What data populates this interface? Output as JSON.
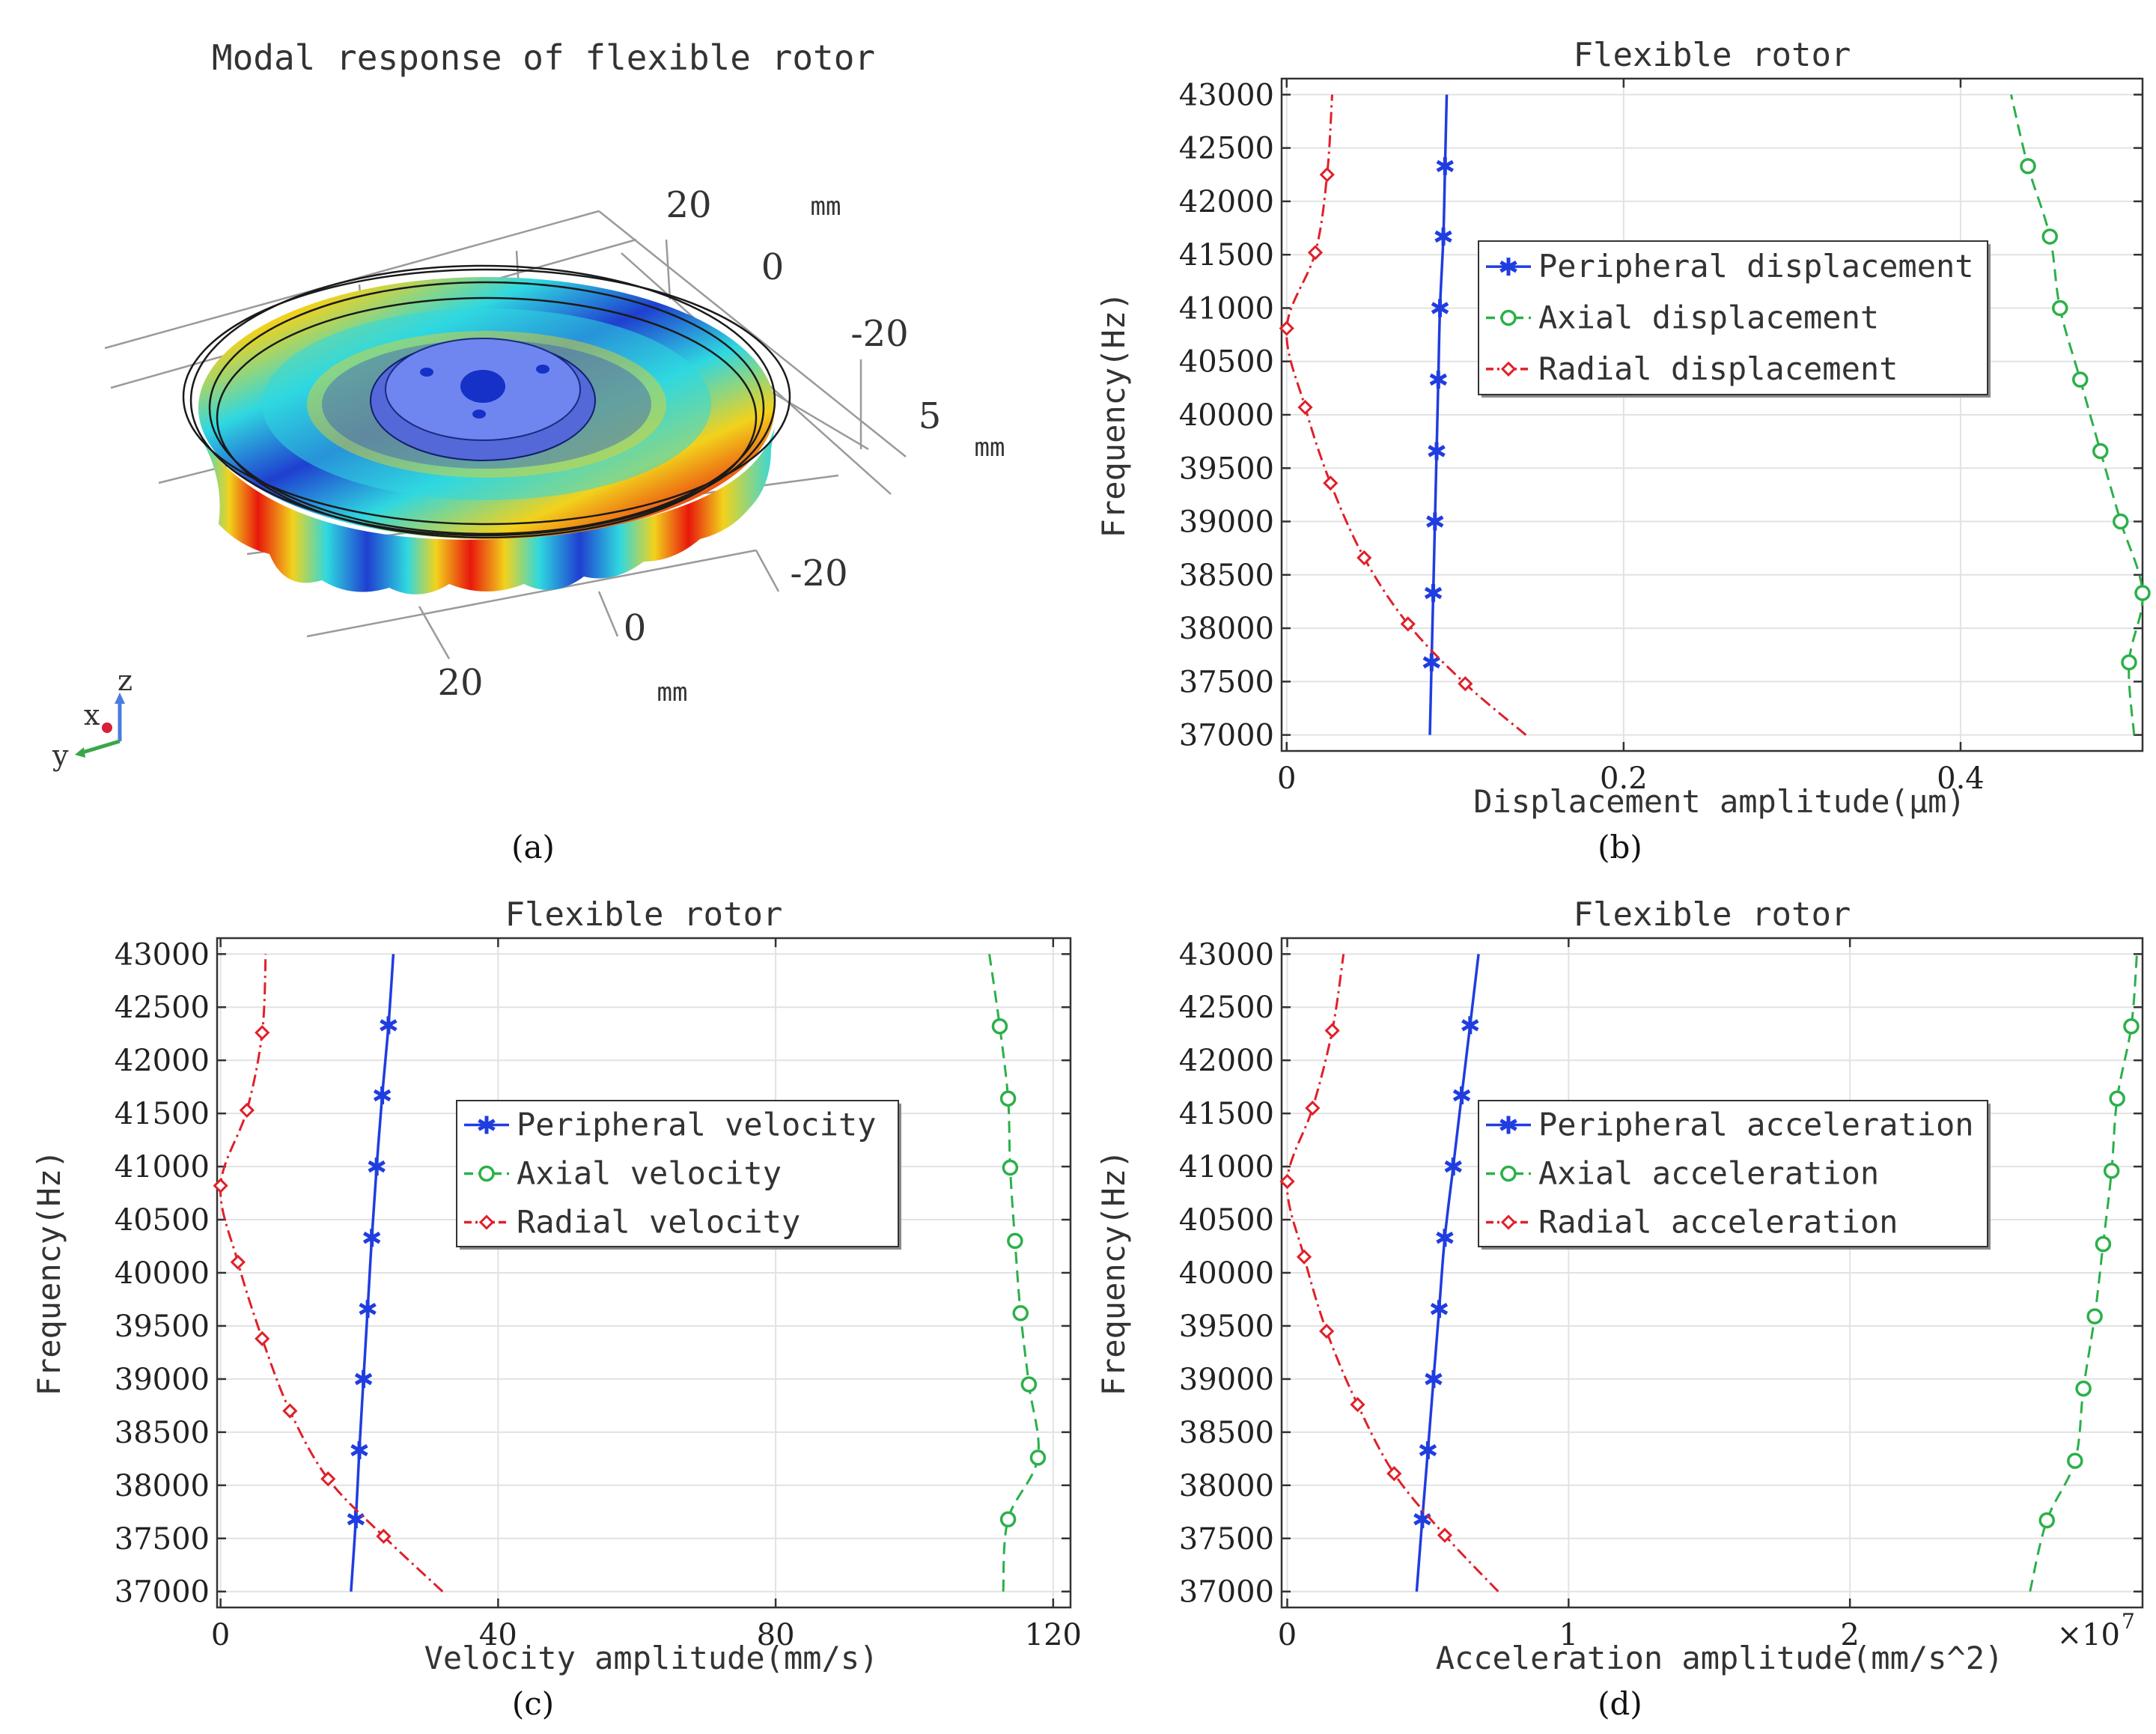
{
  "panels": {
    "a": {
      "title": "Modal response of flexible rotor",
      "caption": "(a)",
      "axis_ticks": {
        "top_y": [
          "20",
          "0",
          "-20"
        ],
        "top_unit": "mm",
        "z_tick": "5",
        "z_unit": "mm",
        "bottom_x": [
          "-20",
          "0",
          "20"
        ],
        "bottom_unit": "mm"
      },
      "triad": {
        "z": "z",
        "x": "x",
        "y": "y"
      },
      "colors": {
        "red": "#e8180c",
        "yellow": "#f2d21c",
        "cyan": "#2fd8e0",
        "blue": "#1f3fd0",
        "hub": "#6f86f0"
      }
    },
    "b": {
      "caption": "(b)"
    },
    "c": {
      "caption": "(c)"
    },
    "d": {
      "caption": "(d)"
    }
  },
  "chart_data": [
    {
      "id": "b",
      "type": "line",
      "title": "Flexible rotor",
      "xlabel": "Displacement amplitude(μm)",
      "ylabel": "Frequency(Hz)",
      "xlim": [
        -0.003,
        0.508
      ],
      "ylim": [
        36850,
        43150
      ],
      "xticks": [
        0,
        0.2,
        0.4
      ],
      "xtick_labels": [
        "0",
        "0.2",
        "0.4"
      ],
      "x_multiplier": "",
      "yticks": [
        37000,
        37500,
        38000,
        38500,
        39000,
        39500,
        40000,
        40500,
        41000,
        41500,
        42000,
        42500,
        43000
      ],
      "ytick_labels": [
        "37000",
        "37500",
        "38000",
        "38500",
        "39000",
        "39500",
        "40000",
        "40500",
        "41000",
        "41500",
        "42000",
        "42500",
        "43000"
      ],
      "legend": "center",
      "series": [
        {
          "name": "Peripheral displacement",
          "color": "#1f3de0",
          "marker": "asterisk",
          "dash": "",
          "curve": [
            [
              0.085,
              37000
            ],
            [
              0.086,
              37680
            ],
            [
              0.087,
              38330
            ],
            [
              0.088,
              39000
            ],
            [
              0.089,
              39660
            ],
            [
              0.09,
              40330
            ],
            [
              0.091,
              41000
            ],
            [
              0.093,
              41670
            ],
            [
              0.094,
              42330
            ],
            [
              0.095,
              43000
            ]
          ],
          "markers": [
            [
              0.086,
              37680
            ],
            [
              0.087,
              38330
            ],
            [
              0.088,
              39000
            ],
            [
              0.089,
              39660
            ],
            [
              0.09,
              40330
            ],
            [
              0.091,
              41000
            ],
            [
              0.093,
              41670
            ],
            [
              0.094,
              42330
            ]
          ]
        },
        {
          "name": "Axial displacement",
          "color": "#2bb04a",
          "marker": "circle",
          "dash": "16,9",
          "curve": [
            [
              0.503,
              37000
            ],
            [
              0.5,
              37680
            ],
            [
              0.508,
              38330
            ],
            [
              0.495,
              39000
            ],
            [
              0.483,
              39660
            ],
            [
              0.471,
              40330
            ],
            [
              0.459,
              41000
            ],
            [
              0.453,
              41670
            ],
            [
              0.44,
              42330
            ],
            [
              0.43,
              43000
            ]
          ],
          "markers": [
            [
              0.5,
              37680
            ],
            [
              0.508,
              38330
            ],
            [
              0.495,
              39000
            ],
            [
              0.483,
              39660
            ],
            [
              0.471,
              40330
            ],
            [
              0.459,
              41000
            ],
            [
              0.453,
              41670
            ],
            [
              0.44,
              42330
            ]
          ]
        },
        {
          "name": "Radial displacement",
          "color": "#e0202a",
          "marker": "diamond",
          "dash": "16,6,3,6",
          "curve": [
            [
              0.142,
              37000
            ],
            [
              0.106,
              37480
            ],
            [
              0.072,
              38040
            ],
            [
              0.046,
              38660
            ],
            [
              0.026,
              39360
            ],
            [
              0.011,
              40070
            ],
            [
              0,
              40810
            ],
            [
              0.017,
              41520
            ],
            [
              0.024,
              42250
            ],
            [
              0.027,
              43000
            ]
          ],
          "markers": [
            [
              0.106,
              37480
            ],
            [
              0.072,
              38040
            ],
            [
              0.046,
              38660
            ],
            [
              0.026,
              39360
            ],
            [
              0.011,
              40070
            ],
            [
              0,
              40810
            ],
            [
              0.017,
              41520
            ],
            [
              0.024,
              42250
            ]
          ]
        }
      ]
    },
    {
      "id": "c",
      "type": "line",
      "title": "Flexible rotor",
      "xlabel": "Velocity amplitude(mm/s)",
      "ylabel": "Frequency(Hz)",
      "xlim": [
        -0.5,
        122.5
      ],
      "ylim": [
        36850,
        43150
      ],
      "xticks": [
        0,
        40,
        80,
        120
      ],
      "xtick_labels": [
        "0",
        "40",
        "80",
        "120"
      ],
      "x_multiplier": "",
      "yticks": [
        37000,
        37500,
        38000,
        38500,
        39000,
        39500,
        40000,
        40500,
        41000,
        41500,
        42000,
        42500,
        43000
      ],
      "ytick_labels": [
        "37000",
        "37500",
        "38000",
        "38500",
        "39000",
        "39500",
        "40000",
        "40500",
        "41000",
        "41500",
        "42000",
        "42500",
        "43000"
      ],
      "legend": "center",
      "series": [
        {
          "name": "Peripheral velocity",
          "color": "#1f3de0",
          "marker": "asterisk",
          "dash": "",
          "curve": [
            [
              18.8,
              37000
            ],
            [
              19.5,
              37680
            ],
            [
              20,
              38330
            ],
            [
              20.6,
              39000
            ],
            [
              21.2,
              39660
            ],
            [
              21.8,
              40330
            ],
            [
              22.5,
              41000
            ],
            [
              23.3,
              41670
            ],
            [
              24.2,
              42330
            ],
            [
              24.9,
              43000
            ]
          ],
          "markers": [
            [
              19.5,
              37680
            ],
            [
              20,
              38330
            ],
            [
              20.6,
              39000
            ],
            [
              21.2,
              39660
            ],
            [
              21.8,
              40330
            ],
            [
              22.5,
              41000
            ],
            [
              23.3,
              41670
            ],
            [
              24.2,
              42330
            ]
          ]
        },
        {
          "name": "Axial velocity",
          "color": "#2bb04a",
          "marker": "circle",
          "dash": "16,9",
          "curve": [
            [
              112.8,
              37000
            ],
            [
              113.5,
              37680
            ],
            [
              117.8,
              38260
            ],
            [
              116.5,
              38950
            ],
            [
              115.3,
              39620
            ],
            [
              114.5,
              40300
            ],
            [
              113.8,
              40990
            ],
            [
              113.5,
              41640
            ],
            [
              112.3,
              42320
            ],
            [
              110.8,
              43000
            ]
          ],
          "markers": [
            [
              113.5,
              37680
            ],
            [
              117.8,
              38260
            ],
            [
              116.5,
              38950
            ],
            [
              115.3,
              39620
            ],
            [
              114.5,
              40300
            ],
            [
              113.8,
              40990
            ],
            [
              113.5,
              41640
            ],
            [
              112.3,
              42320
            ]
          ]
        },
        {
          "name": "Radial velocity",
          "color": "#e0202a",
          "marker": "diamond",
          "dash": "16,6,3,6",
          "curve": [
            [
              32,
              37000
            ],
            [
              23.5,
              37520
            ],
            [
              15.5,
              38060
            ],
            [
              10,
              38700
            ],
            [
              6,
              39380
            ],
            [
              2.5,
              40100
            ],
            [
              0,
              40820
            ],
            [
              3.8,
              41530
            ],
            [
              6,
              42260
            ],
            [
              6.5,
              43000
            ]
          ],
          "markers": [
            [
              23.5,
              37520
            ],
            [
              15.5,
              38060
            ],
            [
              10,
              38700
            ],
            [
              6,
              39380
            ],
            [
              2.5,
              40100
            ],
            [
              0,
              40820
            ],
            [
              3.8,
              41530
            ],
            [
              6,
              42260
            ]
          ]
        }
      ]
    },
    {
      "id": "d",
      "type": "line",
      "title": "Flexible rotor",
      "xlabel": "Acceleration amplitude(mm/s^2)",
      "ylabel": "Frequency(Hz)",
      "xlim": [
        -0.02,
        3.04
      ],
      "ylim": [
        36850,
        43150
      ],
      "xticks": [
        0,
        1,
        2
      ],
      "xtick_labels": [
        "0",
        "1",
        "2"
      ],
      "x_multiplier": "×10",
      "x_multiplier_exp": "7",
      "yticks": [
        37000,
        37500,
        38000,
        38500,
        39000,
        39500,
        40000,
        40500,
        41000,
        41500,
        42000,
        42500,
        43000
      ],
      "ytick_labels": [
        "37000",
        "37500",
        "38000",
        "38500",
        "39000",
        "39500",
        "40000",
        "40500",
        "41000",
        "41500",
        "42000",
        "42500",
        "43000"
      ],
      "legend": "center",
      "series": [
        {
          "name": "Peripheral acceleration",
          "color": "#1f3de0",
          "marker": "asterisk",
          "dash": "",
          "curve": [
            [
              0.46,
              37000
            ],
            [
              0.48,
              37680
            ],
            [
              0.5,
              38330
            ],
            [
              0.52,
              39000
            ],
            [
              0.54,
              39660
            ],
            [
              0.56,
              40330
            ],
            [
              0.59,
              41000
            ],
            [
              0.62,
              41670
            ],
            [
              0.65,
              42330
            ],
            [
              0.68,
              43000
            ]
          ],
          "markers": [
            [
              0.48,
              37680
            ],
            [
              0.5,
              38330
            ],
            [
              0.52,
              39000
            ],
            [
              0.54,
              39660
            ],
            [
              0.56,
              40330
            ],
            [
              0.59,
              41000
            ],
            [
              0.62,
              41670
            ],
            [
              0.65,
              42330
            ]
          ]
        },
        {
          "name": "Axial acceleration",
          "color": "#2bb04a",
          "marker": "circle",
          "dash": "16,9",
          "curve": [
            [
              2.64,
              37000
            ],
            [
              2.7,
              37670
            ],
            [
              2.8,
              38230
            ],
            [
              2.83,
              38910
            ],
            [
              2.87,
              39590
            ],
            [
              2.9,
              40270
            ],
            [
              2.93,
              40960
            ],
            [
              2.95,
              41640
            ],
            [
              3,
              42320
            ],
            [
              3.02,
              43000
            ]
          ],
          "markers": [
            [
              2.7,
              37670
            ],
            [
              2.8,
              38230
            ],
            [
              2.83,
              38910
            ],
            [
              2.87,
              39590
            ],
            [
              2.9,
              40270
            ],
            [
              2.93,
              40960
            ],
            [
              2.95,
              41640
            ],
            [
              3,
              42320
            ]
          ]
        },
        {
          "name": "Radial acceleration",
          "color": "#e0202a",
          "marker": "diamond",
          "dash": "16,6,3,6",
          "curve": [
            [
              0.75,
              37000
            ],
            [
              0.56,
              37530
            ],
            [
              0.38,
              38110
            ],
            [
              0.25,
              38760
            ],
            [
              0.14,
              39450
            ],
            [
              0.06,
              40150
            ],
            [
              0,
              40860
            ],
            [
              0.09,
              41550
            ],
            [
              0.16,
              42280
            ],
            [
              0.2,
              43000
            ]
          ],
          "markers": [
            [
              0.56,
              37530
            ],
            [
              0.38,
              38110
            ],
            [
              0.25,
              38760
            ],
            [
              0.14,
              39450
            ],
            [
              0.06,
              40150
            ],
            [
              0,
              40860
            ],
            [
              0.09,
              41550
            ],
            [
              0.16,
              42280
            ]
          ]
        }
      ]
    }
  ]
}
